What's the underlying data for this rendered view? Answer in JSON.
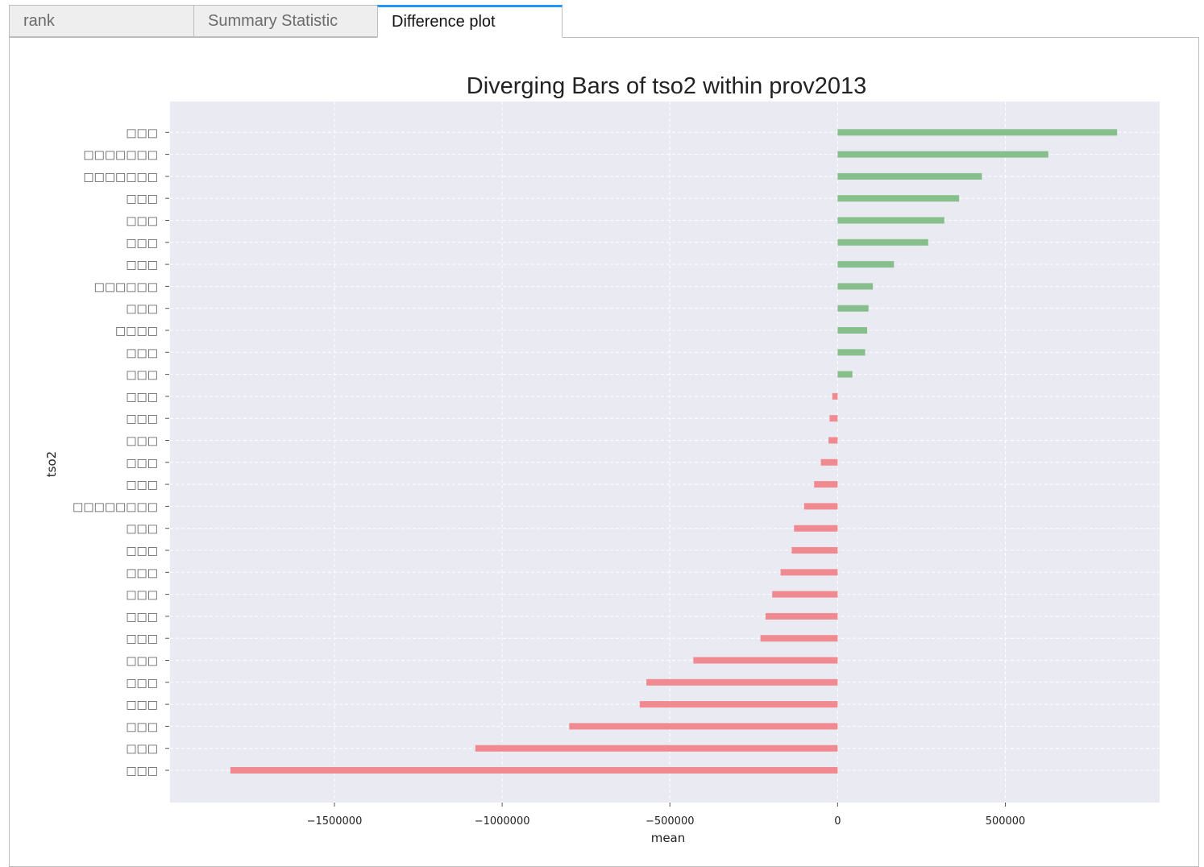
{
  "tabs": [
    {
      "label": "rank"
    },
    {
      "label": "Summary Statistic"
    },
    {
      "label": "Difference plot"
    }
  ],
  "active_tab": 2,
  "colors": {
    "positive": "#86bf8b",
    "negative": "#f08a90",
    "plot_background": "#eaeaf2",
    "grid": "#ffffff",
    "tab_accent": "#2196f3"
  },
  "chart_data": {
    "type": "bar",
    "orientation": "horizontal",
    "title": "Diverging Bars of tso2 within prov2013",
    "xlabel": "mean",
    "ylabel": "tso2",
    "xlim": [
      -1990000,
      960000
    ],
    "xticks": [
      -1500000,
      -1000000,
      -500000,
      0,
      500000
    ],
    "xtick_labels": [
      "−1500000",
      "−1000000",
      "−500000",
      "0",
      "500000"
    ],
    "grid": true,
    "categories": [
      "□□□",
      "□□□",
      "□□□",
      "□□□",
      "□□□",
      "□□□",
      "□□□",
      "□□□",
      "□□□",
      "□□□",
      "□□□",
      "□□□",
      "□□□□□□□□",
      "□□□",
      "□□□",
      "□□□",
      "□□□",
      "□□□",
      "□□□",
      "□□□",
      "□□□□",
      "□□□",
      "□□□□□□",
      "□□□",
      "□□□",
      "□□□",
      "□□□",
      "□□□□□□□",
      "□□□□□□□",
      "□□□"
    ],
    "values": [
      -1810000,
      -1080000,
      -800000,
      -590000,
      -570000,
      -430000,
      -230000,
      -215000,
      -195000,
      -170000,
      -137000,
      -130000,
      -100000,
      -70000,
      -50000,
      -27000,
      -24000,
      -16000,
      44000,
      82000,
      88000,
      92000,
      105000,
      168000,
      270000,
      318000,
      362000,
      430000,
      628000,
      833000
    ]
  }
}
